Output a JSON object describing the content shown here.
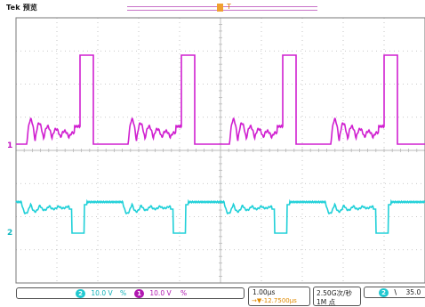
{
  "header": {
    "brand": "Tek 预览",
    "trigger_pos_label": "T"
  },
  "markers": {
    "ch1": "1",
    "ch2": "2"
  },
  "status_bar": {
    "ch2": {
      "num": "2",
      "scale": "10.0 V",
      "unit": "%"
    },
    "ch1": {
      "num": "1",
      "scale": "10.0 V",
      "unit": "%"
    },
    "timebase": "1.00μs",
    "delay": "→▼-12.7500μs",
    "sample_rate": "2.50G次/秒",
    "record_length": "1M 点",
    "trigger": {
      "source": "2",
      "slope": "\\",
      "level": "35.0"
    }
  },
  "colors": {
    "ch1": "#d020d0",
    "ch2": "#20d0d8",
    "delay": "#e08a00",
    "grid": "#b8b8b8",
    "border": "#777777"
  }
}
